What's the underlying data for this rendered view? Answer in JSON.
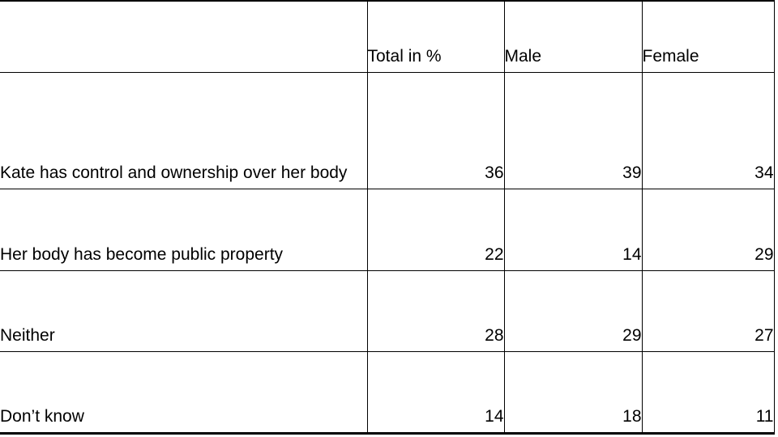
{
  "table": {
    "header": [
      "",
      "Total in %",
      "Male",
      "Female"
    ],
    "rows": [
      {
        "label": "Kate has control and ownership over her body",
        "values": [
          "36",
          "39",
          "34"
        ]
      },
      {
        "label": "Her body has become public property",
        "values": [
          "22",
          "14",
          "29"
        ]
      },
      {
        "label": "Neither",
        "values": [
          "28",
          "29",
          "27"
        ]
      },
      {
        "label": "Don’t know",
        "values": [
          "14",
          "18",
          "11"
        ]
      }
    ]
  }
}
